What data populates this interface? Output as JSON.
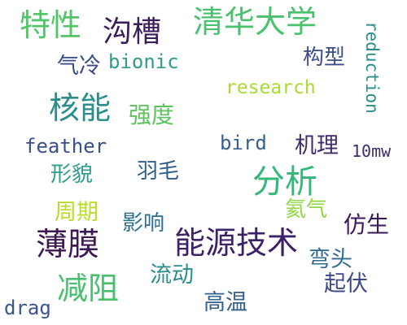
{
  "words": [
    {
      "id": "w01",
      "text": "特性",
      "color": "#52c569"
    },
    {
      "id": "w02",
      "text": "沟槽",
      "color": "#3b1e5c"
    },
    {
      "id": "w03",
      "text": "清华大学",
      "color": "#4ac16d"
    },
    {
      "id": "w04",
      "text": "reduction",
      "color": "#2a8f8a"
    },
    {
      "id": "w05",
      "text": "气冷",
      "color": "#3a4a86"
    },
    {
      "id": "w06",
      "text": "bionic",
      "color": "#2f9c8a"
    },
    {
      "id": "w07",
      "text": "构型",
      "color": "#3d4d8a"
    },
    {
      "id": "w08",
      "text": "核能",
      "color": "#2b8d8c"
    },
    {
      "id": "w09",
      "text": "强度",
      "color": "#5cc35f"
    },
    {
      "id": "w10",
      "text": "research",
      "color": "#a8db34"
    },
    {
      "id": "w11",
      "text": "feather",
      "color": "#3b4f8a"
    },
    {
      "id": "w12",
      "text": "bird",
      "color": "#35608d"
    },
    {
      "id": "w13",
      "text": "机理",
      "color": "#3f2a6b"
    },
    {
      "id": "w14",
      "text": "10mw",
      "color": "#3d2a6f"
    },
    {
      "id": "w15",
      "text": "形貌",
      "color": "#2f9c8c"
    },
    {
      "id": "w16",
      "text": "羽毛",
      "color": "#2f5d8c"
    },
    {
      "id": "w17",
      "text": "分析",
      "color": "#35b779"
    },
    {
      "id": "w18",
      "text": "周期",
      "color": "#b8de29"
    },
    {
      "id": "w19",
      "text": "氦气",
      "color": "#8fd744"
    },
    {
      "id": "w20",
      "text": "影响",
      "color": "#2d708e"
    },
    {
      "id": "w21",
      "text": "仿生",
      "color": "#3a1a5a"
    },
    {
      "id": "w22",
      "text": "薄膜",
      "color": "#3e1852"
    },
    {
      "id": "w23",
      "text": "能源技术",
      "color": "#3d2166"
    },
    {
      "id": "w24",
      "text": "弯头",
      "color": "#2f6b8e"
    },
    {
      "id": "w25",
      "text": "减阻",
      "color": "#48c16e"
    },
    {
      "id": "w26",
      "text": "流动",
      "color": "#2b8e8c"
    },
    {
      "id": "w27",
      "text": "起伏",
      "color": "#3c4a88"
    },
    {
      "id": "w28",
      "text": "drag",
      "color": "#3a558c"
    },
    {
      "id": "w29",
      "text": "高温",
      "color": "#35608d"
    }
  ]
}
